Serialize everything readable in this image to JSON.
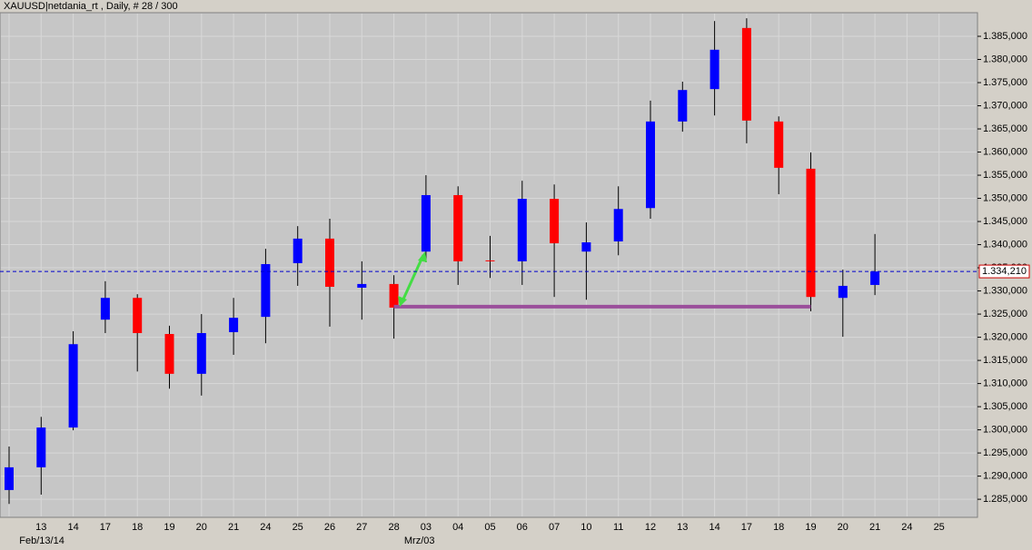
{
  "chart_data": {
    "type": "candlestick",
    "title": "XAUUSD|netdania_rt , Daily, # 28 / 300",
    "categories": [
      null,
      "13",
      "14",
      "17",
      "18",
      "19",
      "20",
      "21",
      "24",
      "25",
      "26",
      "27",
      "28",
      "03",
      "04",
      "05",
      "06",
      "07",
      "10",
      "11",
      "12",
      "13",
      "14",
      "17",
      "18",
      "19",
      "20",
      "21",
      "24",
      "25"
    ],
    "date_labels": [
      {
        "index": 1,
        "label": "Feb/13/14"
      },
      {
        "index": 13,
        "label": "Mrz/03"
      }
    ],
    "open": [
      1.287,
      1.2919,
      1.3005,
      1.3238,
      1.3285,
      1.3207,
      1.3121,
      1.3211,
      1.3244,
      1.336,
      1.3413,
      1.3307,
      1.3315,
      1.3385,
      1.3507,
      1.3366,
      1.3364,
      1.3499,
      1.3385,
      1.3407,
      1.3479,
      1.3666,
      1.3736,
      1.3868,
      1.3666,
      1.3564,
      1.3285,
      1.3313,
      null,
      null
    ],
    "high": [
      1.2964,
      1.3028,
      1.3213,
      1.3321,
      1.3293,
      1.3225,
      1.325,
      1.3285,
      1.3391,
      1.344,
      1.3456,
      1.3364,
      1.3334,
      1.355,
      1.3526,
      1.3419,
      1.3538,
      1.353,
      1.3448,
      1.3526,
      1.3711,
      1.3752,
      1.3883,
      1.3889,
      1.3677,
      1.3599,
      1.3346,
      1.3423,
      null,
      null
    ],
    "low": [
      1.284,
      1.286,
      1.2999,
      1.3209,
      1.3126,
      1.3089,
      1.3074,
      1.3162,
      1.3187,
      1.3311,
      1.3223,
      1.3238,
      1.3197,
      1.3362,
      1.3313,
      1.3328,
      1.3313,
      1.3287,
      1.3281,
      1.3377,
      1.3456,
      1.3644,
      1.3679,
      1.3619,
      1.3509,
      1.3256,
      1.3201,
      1.3291,
      null,
      null
    ],
    "close": [
      1.2919,
      1.3005,
      1.3185,
      1.3285,
      1.3209,
      1.3121,
      1.3209,
      1.3242,
      1.3358,
      1.3413,
      1.3309,
      1.3315,
      1.3264,
      1.3507,
      1.3364,
      1.3364,
      1.3499,
      1.3403,
      1.3405,
      1.3477,
      1.3666,
      1.3734,
      1.3821,
      1.3668,
      1.3566,
      1.3287,
      1.3311,
      1.3342,
      null,
      null
    ],
    "up_color": "#0000ff",
    "down_color": "#ff0000",
    "current_price": {
      "value": 1.33421,
      "label": "1.334,210"
    },
    "support_level": 1.3266,
    "ylim": [
      1.2811,
      1.3901
    ],
    "yticks": [
      {
        "value": 1.285,
        "label": "1.285,000"
      },
      {
        "value": 1.29,
        "label": "1.290,000"
      },
      {
        "value": 1.295,
        "label": "1.295,000"
      },
      {
        "value": 1.3,
        "label": "1.300,000"
      },
      {
        "value": 1.305,
        "label": "1.305,000"
      },
      {
        "value": 1.31,
        "label": "1.310,000"
      },
      {
        "value": 1.315,
        "label": "1.315,000"
      },
      {
        "value": 1.32,
        "label": "1.320,000"
      },
      {
        "value": 1.325,
        "label": "1.325,000"
      },
      {
        "value": 1.33,
        "label": "1.330,000"
      },
      {
        "value": 1.335,
        "label": "1.335,000"
      },
      {
        "value": 1.34,
        "label": "1.340,000"
      },
      {
        "value": 1.345,
        "label": "1.345,000"
      },
      {
        "value": 1.35,
        "label": "1.350,000"
      },
      {
        "value": 1.355,
        "label": "1.355,000"
      },
      {
        "value": 1.36,
        "label": "1.360,000"
      },
      {
        "value": 1.365,
        "label": "1.365,000"
      },
      {
        "value": 1.37,
        "label": "1.370,000"
      },
      {
        "value": 1.375,
        "label": "1.375,000"
      },
      {
        "value": 1.38,
        "label": "1.380,000"
      },
      {
        "value": 1.385,
        "label": "1.385,000"
      }
    ],
    "grid": true
  }
}
